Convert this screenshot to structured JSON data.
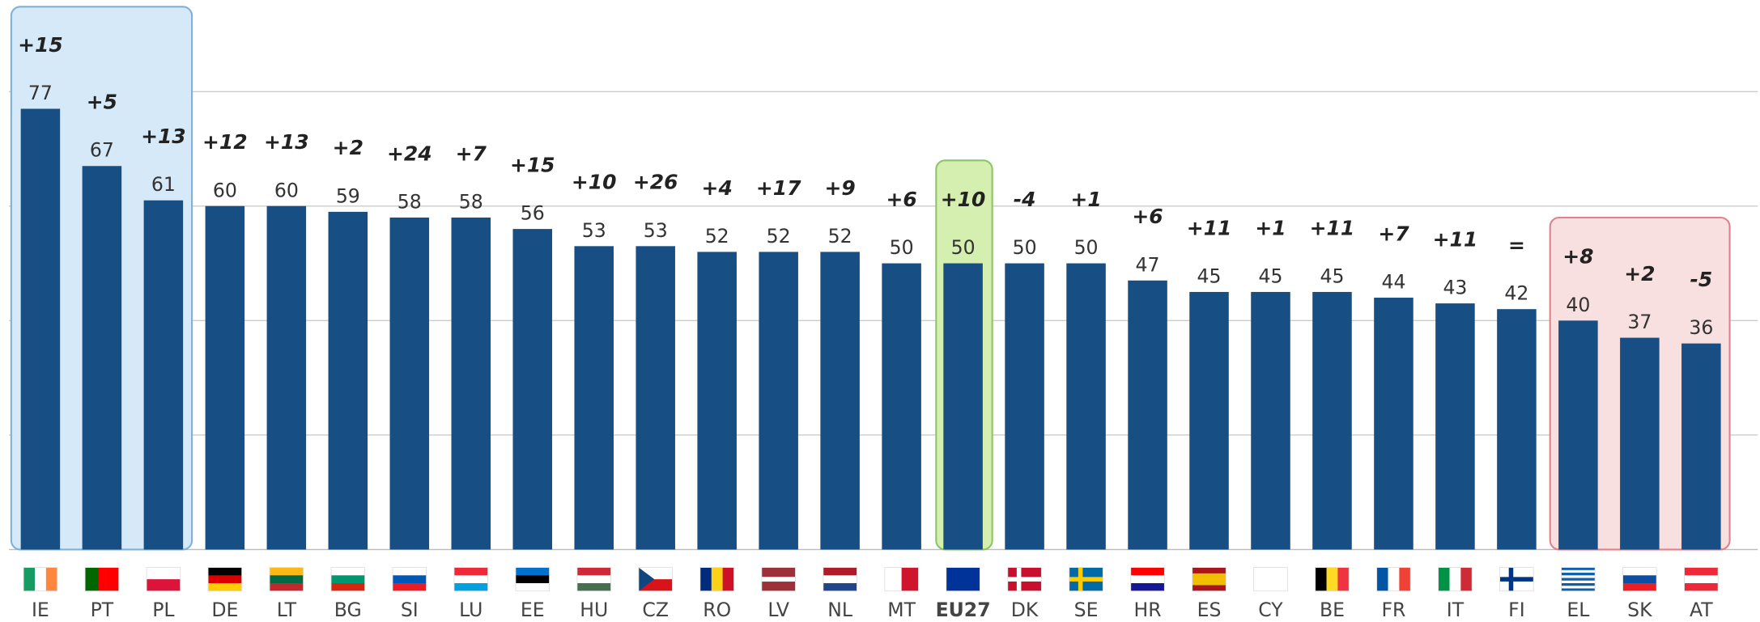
{
  "chart_data": {
    "type": "bar",
    "categories": [
      "IE",
      "PT",
      "PL",
      "DE",
      "LT",
      "BG",
      "SI",
      "LU",
      "EE",
      "HU",
      "CZ",
      "RO",
      "LV",
      "NL",
      "MT",
      "EU27",
      "DK",
      "SE",
      "HR",
      "ES",
      "CY",
      "BE",
      "FR",
      "IT",
      "FI",
      "EL",
      "SK",
      "AT"
    ],
    "values": [
      77,
      67,
      61,
      60,
      60,
      59,
      58,
      58,
      56,
      53,
      53,
      52,
      52,
      52,
      50,
      50,
      50,
      50,
      47,
      45,
      45,
      45,
      44,
      43,
      42,
      40,
      37,
      36
    ],
    "changes": [
      "+15",
      "+5",
      "+13",
      "+12",
      "+13",
      "+2",
      "+24",
      "+7",
      "+15",
      "+10",
      "+26",
      "+4",
      "+17",
      "+9",
      "+6",
      "+10",
      "-4",
      "+1",
      "+6",
      "+11",
      "+1",
      "+11",
      "+7",
      "+11",
      "=",
      "+8",
      "+2",
      "-5"
    ],
    "color": "#174f85",
    "ylim": [
      0,
      96
    ],
    "yticks": [
      0,
      20,
      40,
      60,
      80
    ],
    "grid": true
  }
}
